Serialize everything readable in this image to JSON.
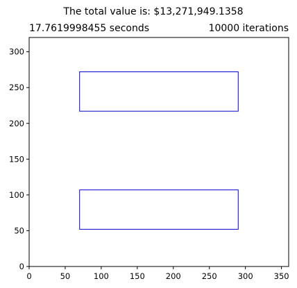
{
  "chart_data": {
    "type": "rectangles",
    "title": "The total value is: $13,271,949.1358",
    "left_title": "17.7619998455 seconds",
    "right_title": "10000 iterations",
    "xlim": [
      0,
      360
    ],
    "ylim": [
      0,
      320
    ],
    "x_ticks": [
      0,
      50,
      100,
      150,
      200,
      250,
      300,
      350
    ],
    "y_ticks": [
      0,
      50,
      100,
      150,
      200,
      250,
      300
    ],
    "grid": false,
    "rect_color": "#0000cc",
    "rectangles": [
      {
        "x": 70,
        "y": 217,
        "width": 220,
        "height": 55
      },
      {
        "x": 70,
        "y": 52,
        "width": 220,
        "height": 55
      }
    ]
  }
}
